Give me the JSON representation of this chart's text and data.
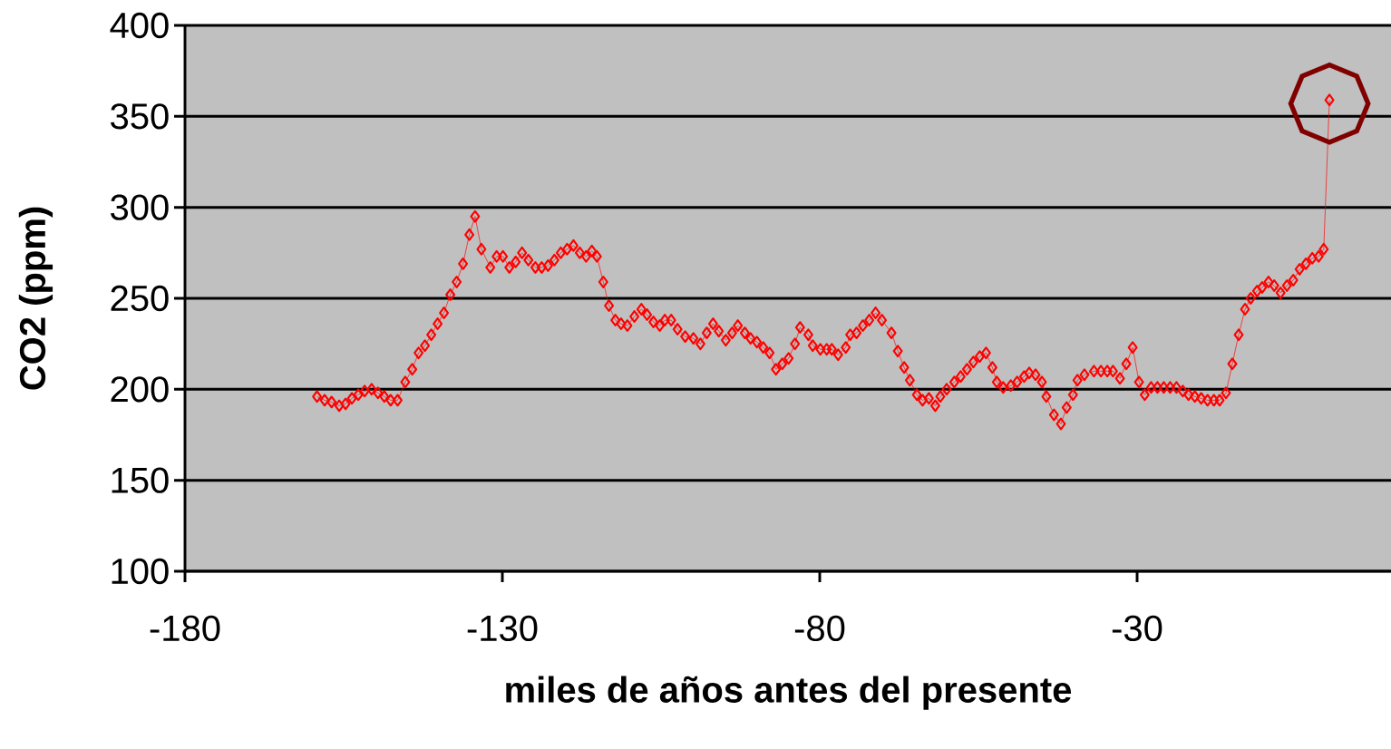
{
  "chart_data": {
    "type": "line",
    "xlabel": "miles de años antes del presente",
    "ylabel": "CO2 (ppm)",
    "xlim": [
      -180,
      10
    ],
    "xticks": [
      -180,
      -130,
      -80,
      -30
    ],
    "ylim": [
      100,
      400
    ],
    "yticks": [
      100,
      150,
      200,
      250,
      300,
      350,
      400
    ],
    "grid": "y",
    "marker": "diamond",
    "line_style": "solid",
    "series": [
      {
        "color": "#ff0000",
        "x": [
          -159.2,
          -158.0,
          -156.9,
          -155.7,
          -154.7,
          -153.7,
          -152.7,
          -151.7,
          -150.6,
          -149.6,
          -148.6,
          -147.6,
          -146.5,
          -145.3,
          -144.2,
          -143.2,
          -142.2,
          -141.2,
          -140.2,
          -139.2,
          -138.2,
          -137.2,
          -136.2,
          -135.2,
          -134.3,
          -133.3,
          -131.9,
          -130.9,
          -129.9,
          -128.9,
          -127.9,
          -126.9,
          -125.9,
          -124.8,
          -123.8,
          -122.8,
          -121.8,
          -120.8,
          -119.8,
          -118.8,
          -117.8,
          -116.8,
          -115.9,
          -115.1,
          -114.1,
          -113.2,
          -112.2,
          -111.3,
          -110.3,
          -109.2,
          -108.1,
          -107.2,
          -106.2,
          -105.2,
          -104.4,
          -103.4,
          -102.4,
          -101.2,
          -99.9,
          -98.8,
          -97.8,
          -96.8,
          -95.9,
          -94.8,
          -93.8,
          -92.9,
          -91.8,
          -90.9,
          -89.9,
          -88.9,
          -87.9,
          -86.9,
          -85.9,
          -84.9,
          -83.9,
          -83.1,
          -81.8,
          -81.1,
          -79.9,
          -78.9,
          -78.1,
          -77.1,
          -75.9,
          -75.2,
          -74.2,
          -73.2,
          -72.2,
          -71.2,
          -70.2,
          -68.7,
          -67.7,
          -66.7,
          -65.8,
          -64.7,
          -63.8,
          -62.8,
          -61.8,
          -61.0,
          -60.0,
          -58.8,
          -57.8,
          -56.8,
          -55.8,
          -54.8,
          -53.8,
          -52.8,
          -52.1,
          -51.1,
          -49.9,
          -48.9,
          -47.8,
          -47.0,
          -46.0,
          -45.0,
          -44.3,
          -43.1,
          -42.0,
          -41.1,
          -40.1,
          -39.4,
          -38.3,
          -36.8,
          -35.7,
          -34.7,
          -33.8,
          -32.7,
          -31.7,
          -30.7,
          -29.7,
          -28.8,
          -27.8,
          -26.8,
          -25.8,
          -24.8,
          -23.8,
          -22.8,
          -21.9,
          -20.9,
          -19.9,
          -18.9,
          -17.9,
          -17.0,
          -16.0,
          -15.0,
          -14.0,
          -13.0,
          -12.1,
          -11.1,
          -10.3,
          -9.3,
          -8.4,
          -7.4,
          -6.4,
          -5.4,
          -4.4,
          -3.4,
          -2.4,
          -1.4,
          -0.6,
          0.3
        ],
        "values": [
          196,
          194,
          193,
          191,
          192,
          195,
          197,
          199,
          200,
          198,
          196,
          194,
          194,
          204,
          211,
          220,
          224,
          230,
          236,
          242,
          252,
          259,
          269,
          285,
          295,
          277,
          267,
          273,
          273,
          267,
          270,
          275,
          271,
          267,
          267,
          268,
          271,
          275,
          277,
          279,
          275,
          273,
          276,
          273,
          259,
          246,
          238,
          236,
          235,
          240,
          244,
          241,
          237,
          235,
          238,
          238,
          233,
          229,
          228,
          225,
          231,
          236,
          232,
          227,
          231,
          235,
          231,
          228,
          226,
          223,
          220,
          211,
          214,
          217,
          225,
          234,
          230,
          224,
          222,
          222,
          222,
          219,
          223,
          230,
          231,
          235,
          238,
          242,
          238,
          231,
          221,
          212,
          205,
          197,
          194,
          195,
          191,
          196,
          200,
          204,
          207,
          211,
          215,
          218,
          220,
          212,
          204,
          201,
          202,
          204,
          207,
          209,
          208,
          204,
          196,
          186,
          181,
          190,
          197,
          205,
          208,
          210,
          210,
          210,
          210,
          206,
          214,
          223,
          204,
          197,
          201,
          201,
          201,
          201,
          201,
          199,
          197,
          196,
          195,
          194,
          194,
          194,
          198,
          214,
          230,
          244,
          250,
          254,
          256,
          259,
          257,
          253,
          257,
          260,
          266,
          269,
          272,
          273,
          277,
          359
        ]
      }
    ]
  }
}
